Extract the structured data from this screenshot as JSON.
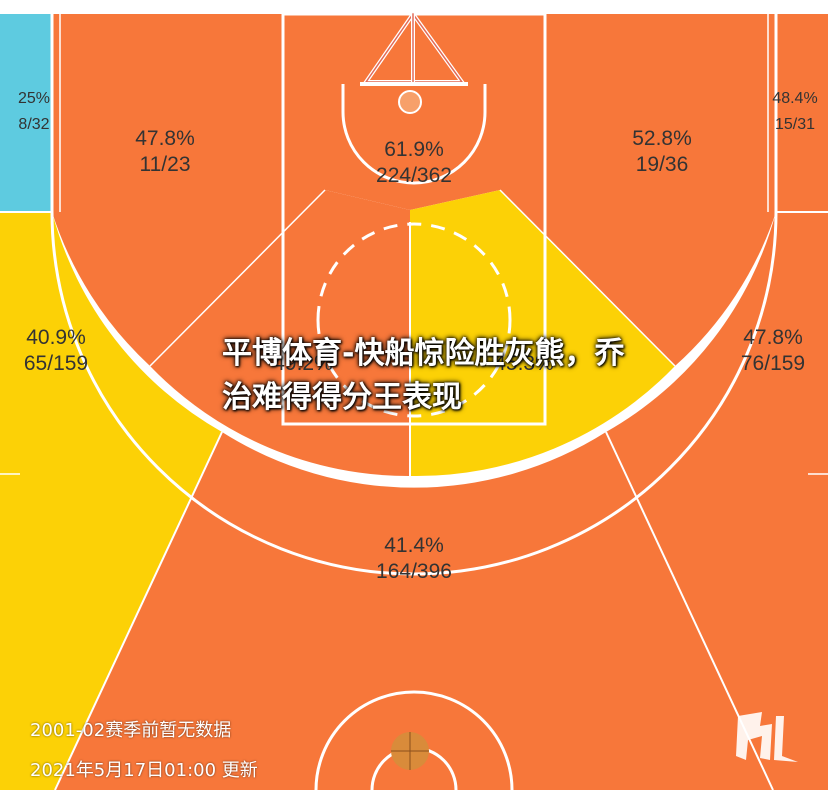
{
  "chart_data": {
    "type": "heatmap",
    "zones": [
      {
        "id": "left-corner-three",
        "pct": "25%",
        "made_attempts": "8/32",
        "tier": "cold"
      },
      {
        "id": "left-baseline-mid",
        "pct": "47.8%",
        "made_attempts": "11/23",
        "tier": "hot"
      },
      {
        "id": "restricted-area",
        "pct": "61.9%",
        "made_attempts": "224/362",
        "tier": "hot"
      },
      {
        "id": "right-baseline-mid",
        "pct": "52.8%",
        "made_attempts": "19/36",
        "tier": "hot"
      },
      {
        "id": "right-corner-three",
        "pct": "48.4%",
        "made_attempts": "15/31",
        "tier": "hot"
      },
      {
        "id": "left-wing-three",
        "pct": "40.9%",
        "made_attempts": "65/159",
        "tier": "average"
      },
      {
        "id": "left-elbow-mid",
        "pct": "49.2%",
        "made_attempts": "",
        "tier": "hot"
      },
      {
        "id": "right-elbow-mid",
        "pct": "45.3%",
        "made_attempts": "",
        "tier": "average"
      },
      {
        "id": "right-wing-three",
        "pct": "47.8%",
        "made_attempts": "76/159",
        "tier": "hot"
      },
      {
        "id": "top-of-key-three",
        "pct": "41.4%",
        "made_attempts": "164/396",
        "tier": "hot"
      }
    ],
    "colors": {
      "hot": "#F7773A",
      "average": "#FCD106",
      "cold": "#5ECBE0",
      "lines": "#ffffff"
    }
  },
  "overlay": {
    "headline": "平博体育-快船惊险胜灰熊，乔治难得得分王表现",
    "season_note": "2001-02赛季前暂无数据",
    "updated": "2021年5月17日01:00 更新"
  }
}
